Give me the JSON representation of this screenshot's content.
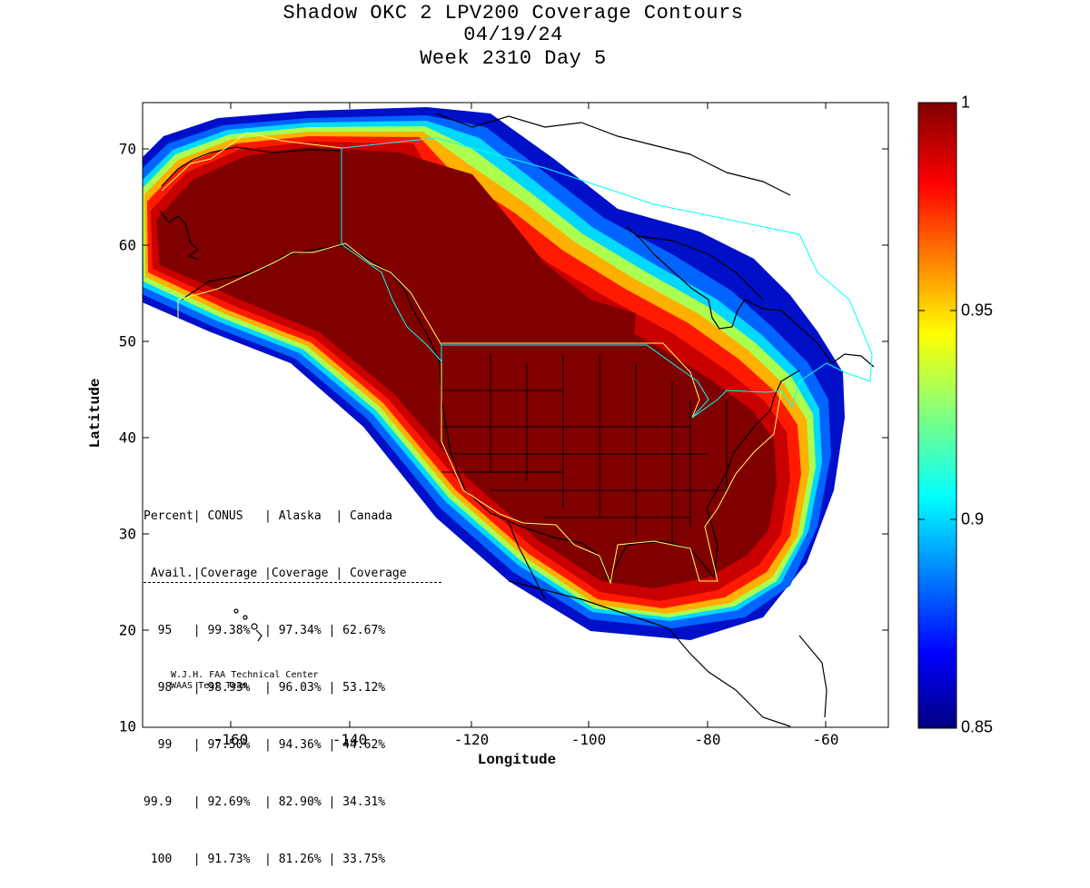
{
  "title": {
    "line1": "Shadow OKC 2 LPV200 Coverage Contours",
    "line2": "04/19/24",
    "line3": "Week 2310 Day 5"
  },
  "axes": {
    "xlabel": "Longitude",
    "ylabel": "Latitude",
    "xticks": [
      "-160",
      "-140",
      "-120",
      "-100",
      "-80",
      "-60"
    ],
    "yticks": [
      "70",
      "60",
      "50",
      "40",
      "30",
      "20",
      "10"
    ],
    "xlim": [
      -175,
      -50
    ],
    "ylim": [
      10,
      75
    ]
  },
  "colorbar": {
    "ticks": [
      "1",
      "0.95",
      "0.9",
      "0.85"
    ],
    "range": [
      0.85,
      1.0
    ],
    "colormap": "jet",
    "max_color": "#800000",
    "min_color": "#000080"
  },
  "stats_table": {
    "header1": "Percent| CONUS   | Alaska  | Canada",
    "header2": " Avail.|Coverage |Coverage | Coverage",
    "rows": [
      "  95   | 99.38%  | 97.34% | 62.67%",
      "  98   | 98.93%  | 96.03% | 53.12%",
      "  99   | 97.50%  | 94.36% | 44.62%",
      "99.9   | 92.69%  | 82.90% | 34.31%",
      " 100   | 91.73%  | 81.26% | 33.75%"
    ]
  },
  "credit": {
    "line1": "W.J.H. FAA Technical Center",
    "line2": "WAAS Test Team"
  }
}
